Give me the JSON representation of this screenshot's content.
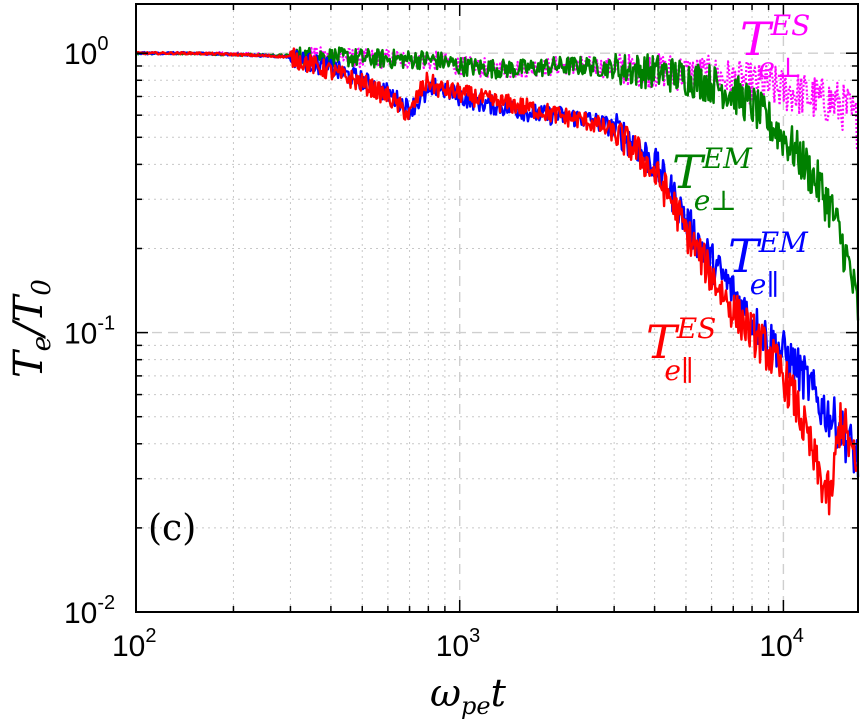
{
  "chart_data": {
    "type": "line",
    "title": "",
    "panel_label": "(c)",
    "xscale": "log",
    "yscale": "log",
    "xlim": [
      100,
      17000
    ],
    "ylim": [
      0.01,
      1.5
    ],
    "xlabel": {
      "main": "ω",
      "sub": "pe",
      "tail": "t"
    },
    "ylabel": {
      "main": "T",
      "sub": "e",
      "mid": "/T",
      "sub2": "0"
    },
    "xticks": [
      {
        "value": 100,
        "base": "10",
        "exp": "2"
      },
      {
        "value": 1000,
        "base": "10",
        "exp": "3"
      },
      {
        "value": 10000,
        "base": "10",
        "exp": "4"
      }
    ],
    "yticks": [
      {
        "value": 0.01,
        "base": "10",
        "exp": "-2"
      },
      {
        "value": 0.1,
        "base": "10",
        "exp": "-1"
      },
      {
        "value": 1,
        "base": "10",
        "exp": "0"
      }
    ],
    "grid": true,
    "series": [
      {
        "name": "T_e⊥^ES",
        "color": "#ff00ff",
        "style": "dotted",
        "label": {
          "main": "T",
          "sub": "e⊥",
          "sup": "ES"
        },
        "x": [
          100,
          150,
          200,
          300,
          400,
          500,
          700,
          900,
          1000,
          1300,
          1600,
          2000,
          2500,
          3000,
          3500,
          4000,
          5000,
          6000,
          7000,
          8000,
          9000,
          10000,
          11000,
          12000,
          13000,
          14000,
          15000,
          16000,
          17000
        ],
        "y": [
          1.0,
          1.0,
          1.0,
          0.98,
          0.97,
          0.96,
          0.95,
          0.93,
          0.9,
          0.88,
          0.88,
          0.9,
          0.9,
          0.88,
          0.87,
          0.87,
          0.85,
          0.83,
          0.8,
          0.78,
          0.76,
          0.74,
          0.72,
          0.7,
          0.68,
          0.67,
          0.65,
          0.62,
          0.55
        ]
      },
      {
        "name": "T_e⊥^EM",
        "color": "#008000",
        "style": "solid",
        "label": {
          "main": "T",
          "sub": "e⊥",
          "sup": "EM"
        },
        "x": [
          100,
          150,
          200,
          300,
          400,
          500,
          700,
          800,
          900,
          1000,
          1300,
          1600,
          2000,
          2500,
          3000,
          3500,
          4000,
          5000,
          6000,
          7000,
          8000,
          9000,
          10000,
          11000,
          12000,
          13000,
          14000,
          15000,
          16000,
          17000
        ],
        "y": [
          1.0,
          1.0,
          0.99,
          0.98,
          0.97,
          0.96,
          0.95,
          0.95,
          0.93,
          0.9,
          0.88,
          0.88,
          0.9,
          0.9,
          0.88,
          0.87,
          0.86,
          0.82,
          0.78,
          0.72,
          0.65,
          0.57,
          0.5,
          0.44,
          0.38,
          0.33,
          0.28,
          0.22,
          0.17,
          0.12
        ]
      },
      {
        "name": "T_e∥^EM",
        "color": "#0000ff",
        "style": "solid",
        "label": {
          "main": "T",
          "sub": "e∥",
          "sup": "EM"
        },
        "x": [
          100,
          150,
          200,
          300,
          400,
          500,
          600,
          700,
          800,
          850,
          1000,
          1200,
          1500,
          1800,
          2000,
          2500,
          3000,
          3500,
          4000,
          4500,
          5000,
          6000,
          7000,
          8000,
          9000,
          10000,
          11000,
          12000,
          13000,
          14000,
          15000,
          16000,
          17000
        ],
        "y": [
          1.0,
          1.0,
          0.99,
          0.97,
          0.88,
          0.8,
          0.72,
          0.63,
          0.72,
          0.76,
          0.7,
          0.66,
          0.63,
          0.6,
          0.6,
          0.58,
          0.54,
          0.47,
          0.4,
          0.32,
          0.25,
          0.18,
          0.14,
          0.11,
          0.095,
          0.085,
          0.075,
          0.065,
          0.055,
          0.05,
          0.045,
          0.04,
          0.035
        ]
      },
      {
        "name": "T_e∥^ES",
        "color": "#ff0000",
        "style": "solid",
        "label": {
          "main": "T",
          "sub": "e∥",
          "sup": "ES"
        },
        "x": [
          100,
          150,
          200,
          300,
          400,
          500,
          600,
          700,
          750,
          800,
          850,
          1000,
          1200,
          1500,
          1800,
          2000,
          2500,
          3000,
          3500,
          4000,
          4500,
          5000,
          6000,
          7000,
          8000,
          9000,
          10000,
          11000,
          12000,
          13000,
          14000,
          15000,
          16000,
          17000
        ],
        "y": [
          1.0,
          1.0,
          0.99,
          0.97,
          0.86,
          0.78,
          0.7,
          0.6,
          0.72,
          0.8,
          0.75,
          0.72,
          0.68,
          0.65,
          0.62,
          0.6,
          0.57,
          0.52,
          0.45,
          0.37,
          0.3,
          0.23,
          0.16,
          0.12,
          0.1,
          0.085,
          0.07,
          0.055,
          0.04,
          0.03,
          0.025,
          0.05,
          0.04,
          0.03
        ]
      }
    ]
  }
}
